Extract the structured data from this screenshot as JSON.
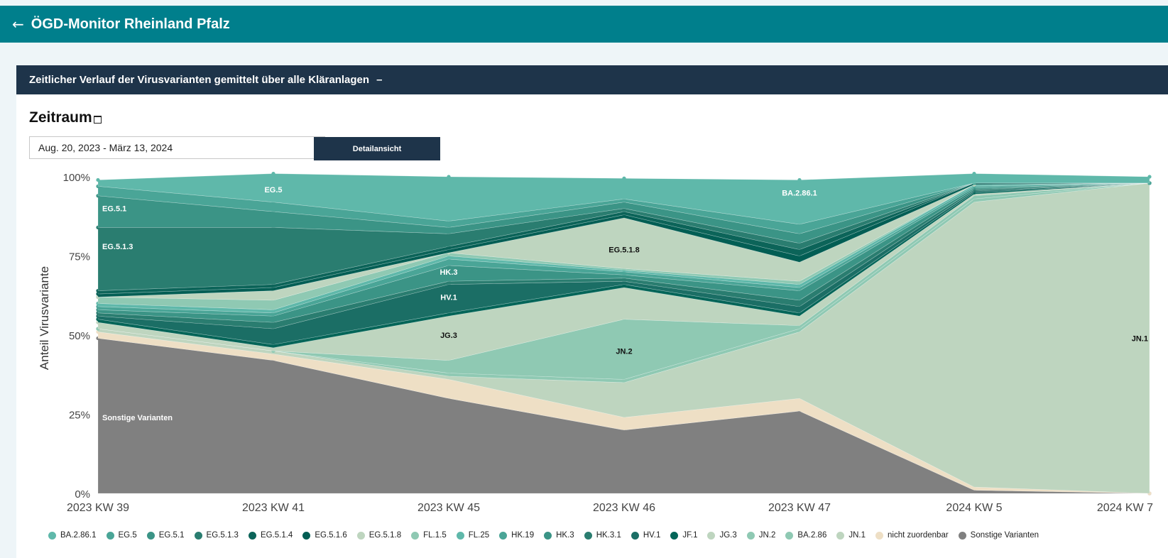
{
  "header": {
    "back_icon": "←",
    "title": "ÖGD-Monitor Rheinland Pfalz"
  },
  "panel": {
    "title": "Zeitlicher Verlauf der Virusvarianten gemittelt über alle Kläranlagen",
    "collapse_label": "–"
  },
  "filter": {
    "label": "Zeitraum",
    "date_range": "Aug. 20, 2023 - März 13, 2024",
    "button_label": "Detailansicht"
  },
  "chart_data": {
    "type": "area",
    "title": "",
    "ylabel": "Anteil Virusvariante",
    "xlabel": "",
    "ylim": [
      0,
      100
    ],
    "y_ticks": [
      "0%",
      "25%",
      "50%",
      "75%",
      "100%"
    ],
    "categories": [
      "2023 KW 39",
      "2023 KW 41",
      "2023 KW 45",
      "2023 KW 46",
      "2023 KW 47",
      "2024 KW 5",
      "2024 KW 7"
    ],
    "stack_order": "bottom-to-top",
    "series": [
      {
        "name": "Sonstige Varianten",
        "color": "#808080",
        "values": [
          49,
          42,
          30,
          20,
          26,
          1,
          0
        ]
      },
      {
        "name": "nicht zuordenbar",
        "color": "#eedfc5",
        "values": [
          2,
          2,
          6,
          4,
          4,
          1,
          0
        ]
      },
      {
        "name": "JN.1",
        "color": "#bed5bf",
        "values": [
          1,
          1,
          1,
          11,
          21,
          90,
          98
        ]
      },
      {
        "name": "BA.2.86",
        "color": "#8fc9b3",
        "values": [
          0,
          0,
          1,
          1,
          1,
          1,
          0
        ]
      },
      {
        "name": "JN.2",
        "color": "#8fc9b3",
        "values": [
          0,
          0,
          4,
          19,
          1,
          1,
          0
        ]
      },
      {
        "name": "JG.3",
        "color": "#bed5bf",
        "values": [
          2,
          1,
          14,
          10,
          3,
          0.5,
          0
        ]
      },
      {
        "name": "JF.1",
        "color": "#036558",
        "values": [
          1,
          1,
          1,
          1,
          1,
          0.5,
          0
        ]
      },
      {
        "name": "HV.1",
        "color": "#1b6e65",
        "values": [
          1,
          5,
          9,
          1,
          2,
          0.5,
          0
        ]
      },
      {
        "name": "HK.3.1",
        "color": "#2a7d70",
        "values": [
          1,
          2,
          1,
          1,
          2,
          0.5,
          0
        ]
      },
      {
        "name": "HK.3",
        "color": "#3b9486",
        "values": [
          1,
          2,
          5,
          1,
          3,
          0.5,
          0
        ]
      },
      {
        "name": "HK.19",
        "color": "#4aa597",
        "values": [
          1,
          1,
          2,
          1,
          1,
          0.5,
          0
        ]
      },
      {
        "name": "FL.25",
        "color": "#5fb8aa",
        "values": [
          1,
          1,
          1,
          0.5,
          1,
          0.5,
          0
        ]
      },
      {
        "name": "FL.1.5",
        "color": "#8fc9b3",
        "values": [
          2,
          3,
          1,
          0.5,
          1,
          0,
          0
        ]
      },
      {
        "name": "EG.5.1.8",
        "color": "#bed5bf",
        "values": [
          0,
          3,
          0,
          16,
          6,
          0,
          0
        ]
      },
      {
        "name": "EG.5.1.6",
        "color": "#025e54",
        "values": [
          1,
          1,
          1,
          1,
          2,
          0.5,
          0
        ]
      },
      {
        "name": "EG.5.1.4",
        "color": "#0c6459",
        "values": [
          1,
          1,
          1,
          1,
          2,
          0,
          0
        ]
      },
      {
        "name": "EG.5.1.3",
        "color": "#2a7d70",
        "values": [
          20,
          18,
          4,
          1,
          2,
          0,
          0
        ]
      },
      {
        "name": "EG.5.1",
        "color": "#3b9486",
        "values": [
          10,
          5,
          2,
          2,
          3,
          0,
          0
        ]
      },
      {
        "name": "EG.5",
        "color": "#4aa597",
        "values": [
          3,
          3,
          2,
          1,
          3,
          0,
          0
        ]
      },
      {
        "name": "BA.2.86.1",
        "color": "#5fb8aa",
        "values": [
          2,
          9,
          14,
          6.5,
          14,
          3,
          2
        ]
      }
    ],
    "annotations": [
      {
        "text": "EG.5.1",
        "x": "2023 KW 39",
        "y": 90,
        "color": "#ffffff"
      },
      {
        "text": "EG.5",
        "x": "2023 KW 41",
        "y": 96,
        "color": "#ffffff"
      },
      {
        "text": "EG.5.1.3",
        "x": "2023 KW 39",
        "y": 78,
        "color": "#ffffff"
      },
      {
        "text": "HK.3",
        "x": "2023 KW 45",
        "y": 70,
        "color": "#ffffff"
      },
      {
        "text": "HV.1",
        "x": "2023 KW 45",
        "y": 62,
        "color": "#ffffff"
      },
      {
        "text": "JG.3",
        "x": "2023 KW 45",
        "y": 50,
        "color": "#111111"
      },
      {
        "text": "EG.5.1.8",
        "x": "2023 KW 46",
        "y": 77,
        "color": "#111111"
      },
      {
        "text": "BA.2.86.1",
        "x": "2023 KW 47",
        "y": 95,
        "color": "#ffffff"
      },
      {
        "text": "JN.2",
        "x": "2023 KW 46",
        "y": 45,
        "color": "#111111"
      },
      {
        "text": "JN.1",
        "x": "2024 KW 7",
        "y": 49,
        "color": "#111111"
      },
      {
        "text": "Sonstige Varianten",
        "x": "2023 KW 39",
        "y": 24,
        "color": "#ffffff"
      }
    ],
    "legend": [
      {
        "name": "BA.2.86.1",
        "color": "#5fb8aa"
      },
      {
        "name": "EG.5",
        "color": "#4aa597"
      },
      {
        "name": "EG.5.1",
        "color": "#3b9486"
      },
      {
        "name": "EG.5.1.3",
        "color": "#2a7d70"
      },
      {
        "name": "EG.5.1.4",
        "color": "#0c6459"
      },
      {
        "name": "EG.5.1.6",
        "color": "#025e54"
      },
      {
        "name": "EG.5.1.8",
        "color": "#bed5bf"
      },
      {
        "name": "FL.1.5",
        "color": "#8fc9b3"
      },
      {
        "name": "FL.25",
        "color": "#5fb8aa"
      },
      {
        "name": "HK.19",
        "color": "#4aa597"
      },
      {
        "name": "HK.3",
        "color": "#3b9486"
      },
      {
        "name": "HK.3.1",
        "color": "#2a7d70"
      },
      {
        "name": "HV.1",
        "color": "#1b6e65"
      },
      {
        "name": "JF.1",
        "color": "#036558"
      },
      {
        "name": "JG.3",
        "color": "#bed5bf"
      },
      {
        "name": "JN.2",
        "color": "#8fc9b3"
      },
      {
        "name": "BA.2.86",
        "color": "#8fc9b3"
      },
      {
        "name": "JN.1",
        "color": "#bed5bf"
      },
      {
        "name": "nicht zuordenbar",
        "color": "#eedfc5"
      },
      {
        "name": "Sonstige Varianten",
        "color": "#808080"
      }
    ],
    "legend_position": "bottom"
  }
}
